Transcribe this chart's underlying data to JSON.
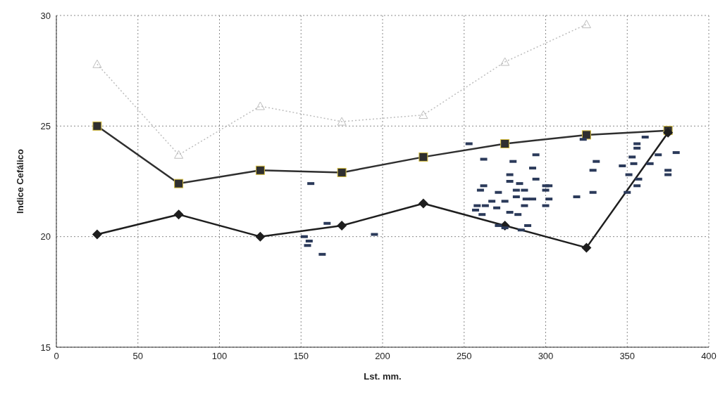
{
  "chart_data": {
    "type": "line",
    "xlabel": "Lst. mm.",
    "ylabel": "Indice Cefálico",
    "x": [
      25,
      75,
      125,
      175,
      225,
      275,
      325,
      375
    ],
    "xlim": [
      0,
      400
    ],
    "xticks": [
      0,
      50,
      100,
      150,
      200,
      250,
      300,
      350,
      400
    ],
    "ylim": [
      15,
      30
    ],
    "yticks": [
      15,
      20,
      25,
      30
    ],
    "grid": true,
    "legend": false,
    "series": [
      {
        "color": "#bdbdbd",
        "marker": "triangle",
        "line_style": "dotted",
        "values": [
          27.8,
          23.7,
          25.9,
          25.2,
          25.5,
          27.9,
          29.6,
          null
        ]
      },
      {
        "color": "#2f2f2f",
        "marker": "square",
        "line_style": "solid",
        "values": [
          25.0,
          22.4,
          23.0,
          22.9,
          23.6,
          24.2,
          24.6,
          24.8
        ]
      },
      {
        "color": "#1e1e1e",
        "marker": "diamond",
        "line_style": "solid",
        "values": [
          20.1,
          21.0,
          20.0,
          20.5,
          21.5,
          20.5,
          19.5,
          24.7
        ]
      },
      {
        "type": "scatter",
        "color": "#2b3a5a",
        "marker": "square",
        "x": [
          156,
          152,
          155,
          154,
          163,
          166,
          195,
          253,
          262,
          280,
          294,
          292,
          278,
          294,
          262,
          260,
          278,
          284,
          271,
          282,
          287,
          300,
          302,
          300,
          275,
          282,
          288,
          292,
          302,
          267,
          258,
          263,
          270,
          287,
          300,
          257,
          278,
          283,
          261,
          289,
          271,
          275,
          285,
          319,
          329,
          329,
          331,
          323,
          356,
          356,
          361,
          353,
          347,
          351,
          354,
          364,
          369,
          357,
          356,
          350,
          380,
          375,
          375
        ],
        "values": [
          22.4,
          20.0,
          19.8,
          19.6,
          19.2,
          20.6,
          20.1,
          24.2,
          23.5,
          23.4,
          23.7,
          23.1,
          22.8,
          22.6,
          22.3,
          22.1,
          22.5,
          22.4,
          22.0,
          22.1,
          22.1,
          22.3,
          22.3,
          22.1,
          21.6,
          21.8,
          21.7,
          21.7,
          21.7,
          21.6,
          21.4,
          21.4,
          21.3,
          21.4,
          21.4,
          21.2,
          21.1,
          21.0,
          21.0,
          20.5,
          20.5,
          20.4,
          20.3,
          21.8,
          22.0,
          23.0,
          23.4,
          24.4,
          24.2,
          24.0,
          24.5,
          23.6,
          23.2,
          22.8,
          23.3,
          23.3,
          23.7,
          22.6,
          22.3,
          22.0,
          23.8,
          23.0,
          22.8
        ]
      }
    ]
  }
}
